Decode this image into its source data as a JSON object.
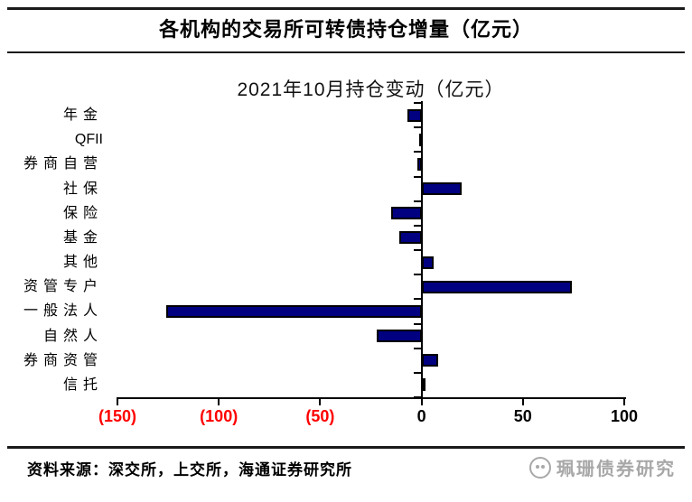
{
  "header": {
    "title": "各机构的交易所可转债持仓增量（亿元）"
  },
  "chart_data": {
    "type": "bar",
    "orientation": "horizontal",
    "title": "2021年10月持仓变动（亿元）",
    "unit": "亿元",
    "categories": [
      "年金",
      "QFII",
      "券商自营",
      "社保",
      "保险",
      "基金",
      "其他",
      "资管专户",
      "一般法人",
      "自然人",
      "券商资管",
      "信托"
    ],
    "values": [
      -7,
      -1,
      -2,
      20,
      -15,
      -11,
      6,
      74,
      -126,
      -22,
      8,
      1
    ],
    "xlim": [
      -150,
      100
    ],
    "xticks": [
      -150,
      -100,
      -50,
      0,
      50,
      100
    ],
    "xtick_labels": [
      "(150)",
      "(100)",
      "(50)",
      "0",
      "50",
      "100"
    ],
    "grid": false,
    "legend": null,
    "styles": {
      "bar_fill": "#000080",
      "bar_border": "#000000",
      "negative_tick_color": "#ff0000",
      "positive_tick_color": "#000000",
      "axis_color": "#000000"
    }
  },
  "footer": {
    "source": "资料来源：深交所，上交所，海通证券研究所",
    "watermark": "珮珊债券研究"
  }
}
